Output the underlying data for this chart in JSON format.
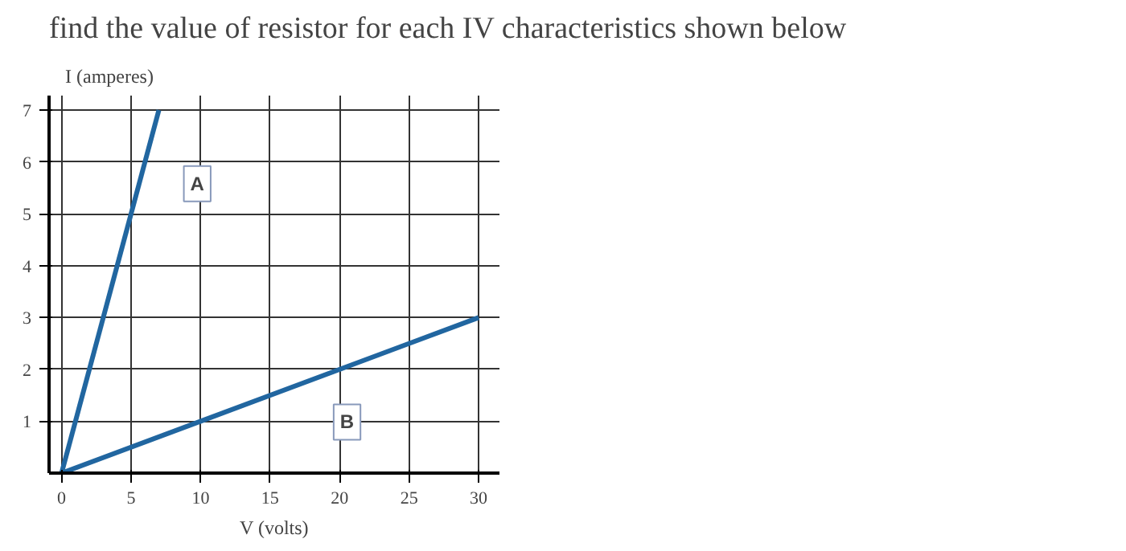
{
  "chart_data": {
    "type": "line",
    "title": "find the value of resistor for each IV characteristics shown below",
    "xlabel": "V (volts)",
    "ylabel": "I (amperes)",
    "series": [
      {
        "name": "A",
        "color": "#2166a0",
        "x": [
          0,
          7
        ],
        "values": [
          0,
          7
        ]
      },
      {
        "name": "B",
        "color": "#2166a0",
        "x": [
          0,
          30
        ],
        "values": [
          0,
          3
        ]
      }
    ],
    "xlim": [
      0,
      30
    ],
    "ylim": [
      0,
      7
    ],
    "xticks": [
      0,
      5,
      10,
      15,
      20,
      25,
      30
    ],
    "yticks": [
      1,
      2,
      3,
      4,
      5,
      6,
      7
    ],
    "grid": true,
    "marker": "none",
    "line_style": "solid"
  }
}
